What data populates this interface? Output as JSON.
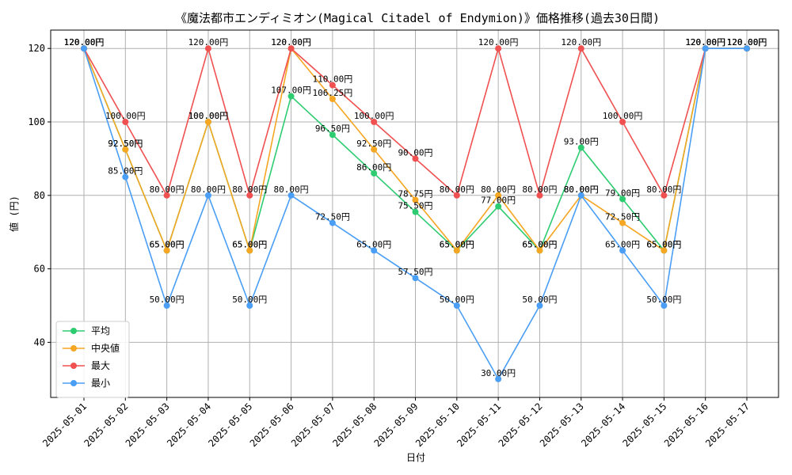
{
  "chart_data": {
    "type": "line",
    "title": "《魔法都市エンディミオン(Magical Citadel of Endymion)》価格推移(過去30日間)",
    "xlabel": "日付",
    "ylabel": "値 (円)",
    "ylim": [
      25,
      125
    ],
    "yticks": [
      40,
      60,
      80,
      100,
      120
    ],
    "grid": true,
    "legend_position": "lower-left",
    "label_suffix": "円",
    "categories": [
      "2025-05-01",
      "2025-05-02",
      "2025-05-03",
      "2025-05-04",
      "2025-05-05",
      "2025-05-06",
      "2025-05-07",
      "2025-05-08",
      "2025-05-09",
      "2025-05-10",
      "2025-05-11",
      "2025-05-12",
      "2025-05-13",
      "2025-05-14",
      "2025-05-15",
      "2025-05-16",
      "2025-05-17"
    ],
    "series": [
      {
        "name": "平均",
        "color": "#2ecc71",
        "values": [
          120,
          92.5,
          65,
          100,
          65,
          107,
          96.5,
          86,
          75.5,
          65,
          77,
          65,
          93,
          79,
          65,
          120,
          120
        ]
      },
      {
        "name": "中央値",
        "color": "#f5a623",
        "values": [
          120,
          92.5,
          65,
          100,
          65,
          120,
          106.25,
          92.5,
          78.75,
          65,
          80,
          65,
          80,
          72.5,
          65,
          120,
          120
        ]
      },
      {
        "name": "最大",
        "color": "#f05050",
        "values": [
          120,
          100,
          80,
          120,
          80,
          120,
          110,
          100,
          90,
          80,
          120,
          80,
          120,
          100,
          80,
          120,
          120
        ]
      },
      {
        "name": "最小",
        "color": "#4a9ef5",
        "values": [
          120,
          85,
          50,
          80,
          50,
          80,
          72.5,
          65,
          57.5,
          50,
          30,
          50,
          80,
          65,
          50,
          120,
          120
        ]
      }
    ]
  }
}
